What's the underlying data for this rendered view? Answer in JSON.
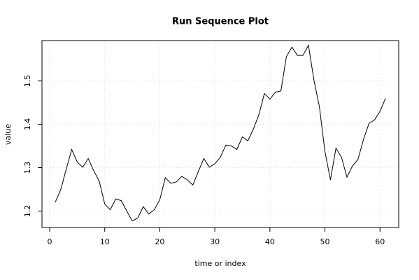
{
  "chart_data": {
    "type": "line",
    "title": "Run Sequence Plot",
    "x_label": "time or index",
    "y_label": "value",
    "x": [
      1,
      2,
      3,
      4,
      5,
      6,
      7,
      8,
      9,
      10,
      11,
      12,
      13,
      14,
      15,
      16,
      17,
      18,
      19,
      20,
      21,
      22,
      23,
      24,
      25,
      26,
      27,
      28,
      29,
      30,
      31,
      32,
      33,
      34,
      35,
      36,
      37,
      38,
      39,
      40,
      41,
      42,
      43,
      44,
      45,
      46,
      47,
      48,
      49,
      50,
      51,
      52,
      53,
      54,
      55,
      56,
      57,
      58,
      59,
      60,
      61
    ],
    "values": [
      1.22,
      1.249,
      1.296,
      1.342,
      1.313,
      1.301,
      1.321,
      1.293,
      1.269,
      1.216,
      1.203,
      1.228,
      1.224,
      1.2,
      1.177,
      1.184,
      1.21,
      1.193,
      1.203,
      1.226,
      1.277,
      1.264,
      1.267,
      1.28,
      1.272,
      1.26,
      1.291,
      1.321,
      1.301,
      1.309,
      1.324,
      1.352,
      1.35,
      1.342,
      1.371,
      1.362,
      1.389,
      1.422,
      1.471,
      1.458,
      1.474,
      1.477,
      1.556,
      1.578,
      1.559,
      1.559,
      1.582,
      1.502,
      1.44,
      1.337,
      1.272,
      1.345,
      1.324,
      1.278,
      1.304,
      1.319,
      1.365,
      1.402,
      1.41,
      1.43,
      1.46
    ],
    "color": "#000000",
    "xlim": [
      -1.4,
      63.4
    ],
    "xticks": [
      0,
      10,
      20,
      30,
      40,
      50,
      60
    ],
    "ylim": [
      1.162,
      1.593
    ],
    "yticks": [
      1.2,
      1.3,
      1.4,
      1.5
    ],
    "grid": true
  }
}
